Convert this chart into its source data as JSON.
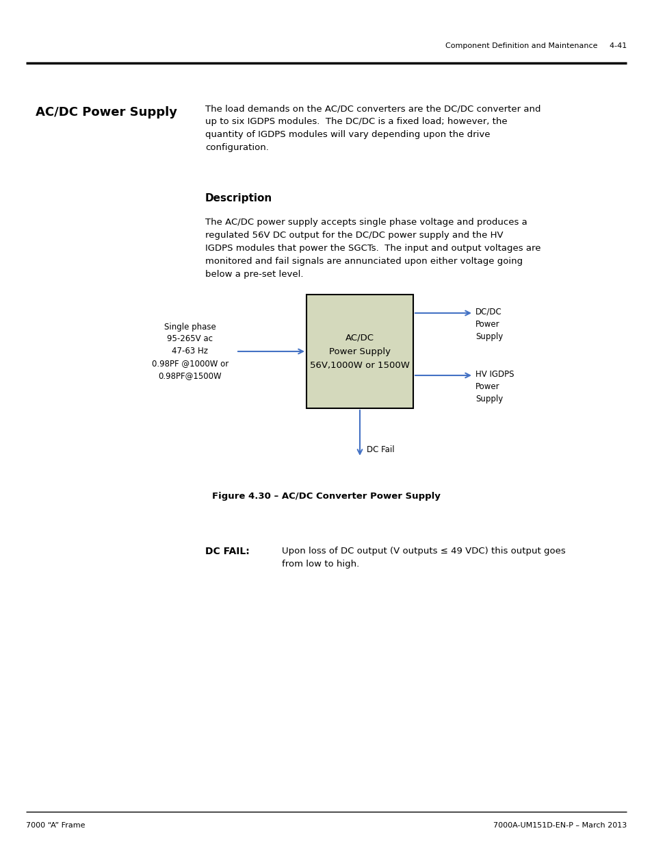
{
  "page_header_right": "Component Definition and Maintenance",
  "page_header_number": "4-41",
  "page_footer_left": "7000 “A” Frame",
  "page_footer_right": "7000A-UM151D-EN-P – March 2013",
  "section_title": "AC/DC Power Supply",
  "intro_text": "The load demands on the AC/DC converters are the DC/DC converter and\nup to six IGDPS modules.  The DC/DC is a fixed load; however, the\nquantity of IGDPS modules will vary depending upon the drive\nconfiguration.",
  "description_title": "Description",
  "desc_text": "The AC/DC power supply accepts single phase voltage and produces a\nregulated 56V DC output for the DC/DC power supply and the HV\nIGDPS modules that power the SGCTs.  The input and output voltages are\nmonitored and fail signals are annunciated upon either voltage going\nbelow a pre-set level.",
  "box_text": "AC/DC\nPower Supply\n56V,1000W or 1500W",
  "box_color": "#d4d9bc",
  "left_label": "Single phase\n95-265V ac\n47-63 Hz\n0.98PF @1000W or\n0.98PF@1500W",
  "arrow_color": "#4472c4",
  "right_top_label": "DC/DC\nPower\nSupply",
  "right_bottom_label": "HV IGDPS\nPower\nSupply",
  "bottom_label": "DC Fail",
  "figure_caption": "Figure 4.30 – AC/DC Converter Power Supply",
  "dc_fail_label": "DC FAIL:",
  "dc_fail_text": "Upon loss of DC output (V outputs ≤ 49 VDC) this output goes\nfrom low to high.",
  "background": "#ffffff"
}
